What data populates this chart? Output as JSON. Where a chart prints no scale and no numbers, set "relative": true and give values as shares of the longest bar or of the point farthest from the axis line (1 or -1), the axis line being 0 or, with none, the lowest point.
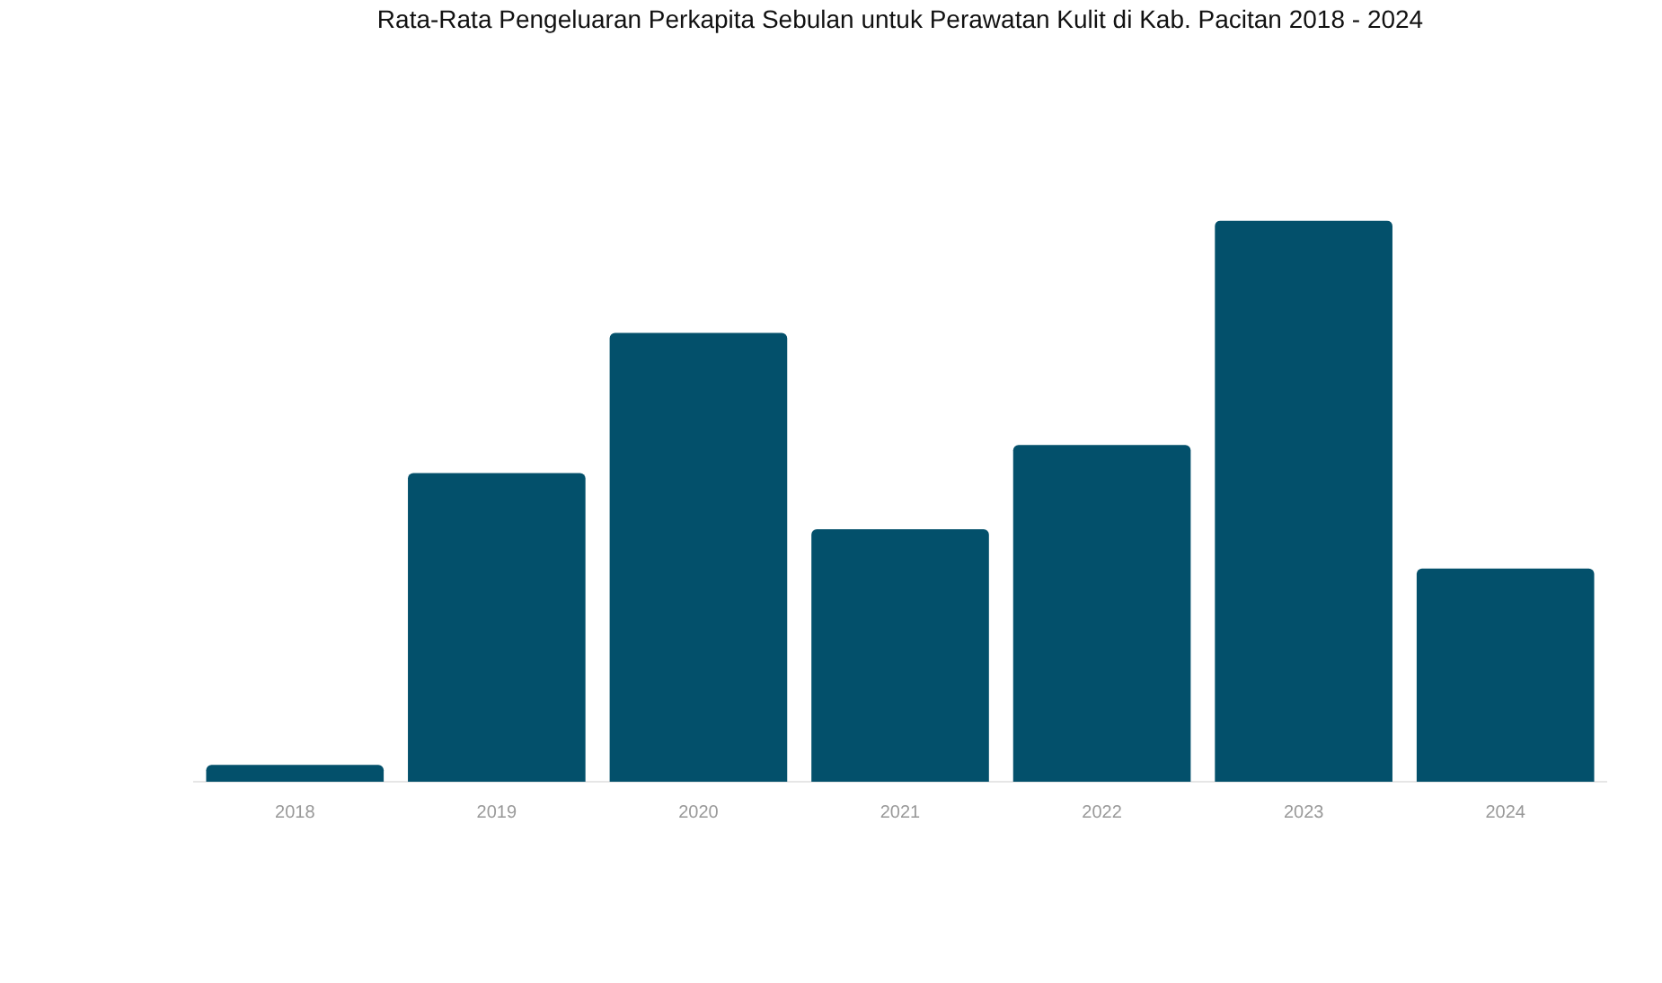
{
  "chart_data": {
    "type": "bar",
    "title": "Rata-Rata Pengeluaran Perkapita Sebulan untuk Perawatan Kulit di Kab. Pacitan 2018 - 2024",
    "categories": [
      "2018",
      "2019",
      "2020",
      "2021",
      "2022",
      "2023",
      "2024"
    ],
    "values": [
      0.03,
      0.55,
      0.8,
      0.45,
      0.6,
      1,
      0.38
    ],
    "color": "#03506b",
    "relative": true
  }
}
